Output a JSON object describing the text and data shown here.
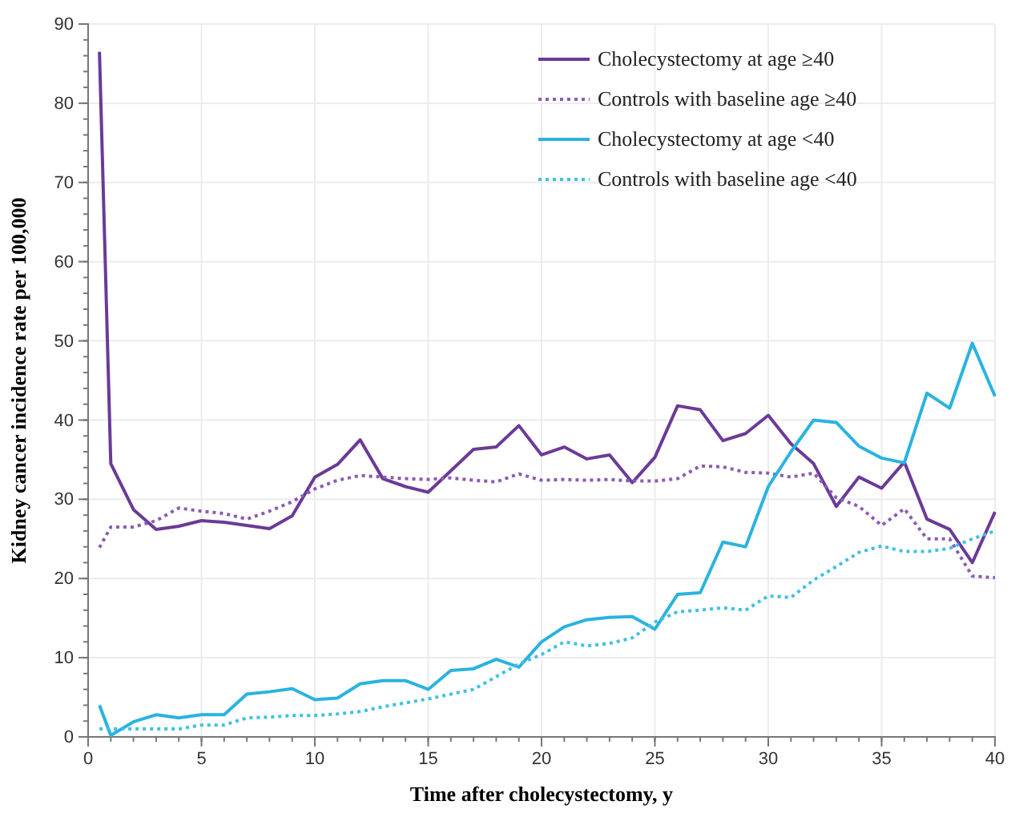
{
  "chart_data": {
    "type": "line",
    "xlabel": "Time after cholecystectomy, y",
    "ylabel": "Kidney cancer incidence rate per 100,000",
    "x": [
      0.5,
      1,
      2,
      3,
      4,
      5,
      6,
      7,
      8,
      9,
      10,
      11,
      12,
      13,
      14,
      15,
      16,
      17,
      18,
      19,
      20,
      21,
      22,
      23,
      24,
      25,
      26,
      27,
      28,
      29,
      30,
      31,
      32,
      33,
      34,
      35,
      36,
      37,
      38,
      39,
      40
    ],
    "xlim": [
      0,
      40
    ],
    "xticks": [
      0,
      5,
      10,
      15,
      20,
      25,
      30,
      35,
      40
    ],
    "ylim": [
      0,
      90
    ],
    "yticks": [
      0,
      10,
      20,
      30,
      40,
      50,
      60,
      70,
      80,
      90
    ],
    "grid": true,
    "legend": "top right",
    "marker": "none",
    "series": [
      {
        "name": "Cholecystectomy at age ≥40",
        "color": "#6b3a98",
        "line_style": "solid",
        "values": [
          86.5,
          34.5,
          28.7,
          26.2,
          26.6,
          27.3,
          27.1,
          26.7,
          26.3,
          27.9,
          32.8,
          34.4,
          37.5,
          32.6,
          31.6,
          30.9,
          33.6,
          36.3,
          36.6,
          39.3,
          35.6,
          36.6,
          35.1,
          35.6,
          32.1,
          35.3,
          41.8,
          41.3,
          37.4,
          38.3,
          40.6,
          37,
          34.5,
          29.1,
          32.8,
          31.4,
          34.7,
          27.5,
          26.2,
          22,
          28.4
        ]
      },
      {
        "name": "Controls with baseline age ≥40",
        "color": "#8a5cb5",
        "line_style": "dotted",
        "values": [
          23.9,
          26.5,
          26.5,
          27.3,
          28.9,
          28.5,
          28.2,
          27.5,
          28.5,
          29.7,
          31.3,
          32.4,
          33,
          32.8,
          32.6,
          32.5,
          32.7,
          32.4,
          32.2,
          33.2,
          32.4,
          32.5,
          32.4,
          32.5,
          32.3,
          32.3,
          32.6,
          34.2,
          34.1,
          33.4,
          33.3,
          32.8,
          33.3,
          30.2,
          29.1,
          26.7,
          28.8,
          25,
          25,
          20.3,
          20.1
        ]
      },
      {
        "name": "Cholecystectomy at age <40",
        "color": "#29b3e0",
        "line_style": "solid",
        "values": [
          4,
          0.2,
          1.9,
          2.8,
          2.4,
          2.8,
          2.8,
          5.4,
          5.7,
          6.1,
          4.7,
          4.9,
          6.7,
          7.1,
          7.1,
          6,
          8.4,
          8.6,
          9.8,
          8.8,
          12,
          13.9,
          14.8,
          15.1,
          15.2,
          13.6,
          18,
          18.2,
          24.6,
          24,
          31.6,
          36,
          40,
          39.7,
          36.7,
          35.2,
          34.6,
          43.4,
          41.5,
          49.7,
          43
        ]
      },
      {
        "name": "Controls with baseline age <40",
        "color": "#3fc0e8",
        "line_style": "dotted",
        "values": [
          1,
          1,
          1,
          1,
          1,
          1.5,
          1.5,
          2.4,
          2.5,
          2.7,
          2.7,
          2.9,
          3.2,
          3.8,
          4.3,
          4.8,
          5.4,
          6,
          7.6,
          9.2,
          10.4,
          12,
          11.5,
          11.8,
          12.5,
          14.5,
          15.8,
          16,
          16.3,
          16,
          17.8,
          17.6,
          19.8,
          21.5,
          23.3,
          24.1,
          23.4,
          23.4,
          23.8,
          25,
          26
        ]
      }
    ]
  }
}
